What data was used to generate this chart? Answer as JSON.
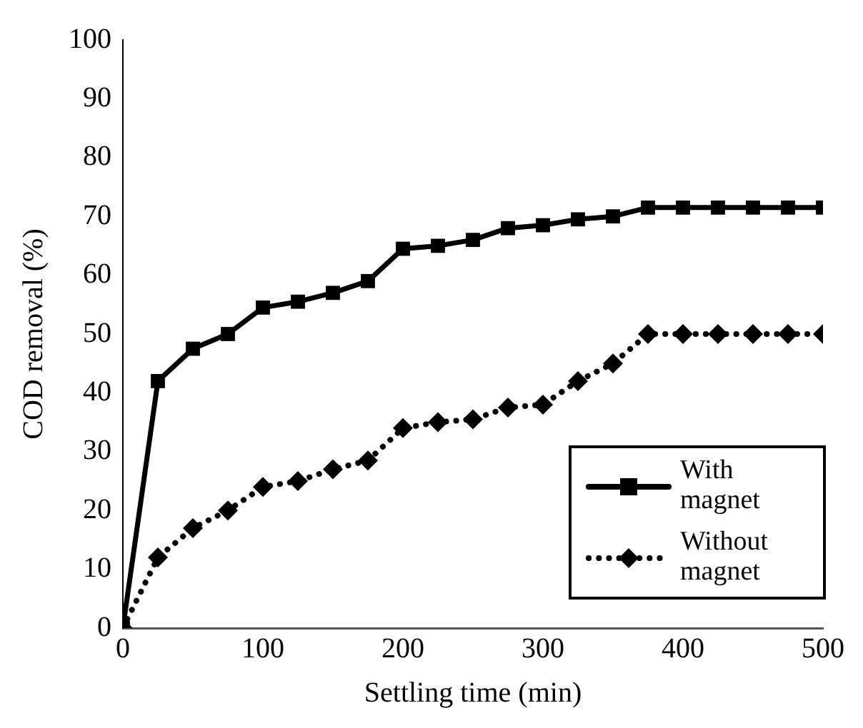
{
  "chart_data": {
    "type": "line",
    "xlabel": "Settling time (min)",
    "ylabel": "COD removal (%)",
    "x": [
      0,
      25,
      50,
      75,
      100,
      125,
      150,
      175,
      200,
      225,
      250,
      275,
      300,
      325,
      350,
      375,
      400,
      425,
      450,
      475,
      500
    ],
    "series": [
      {
        "name": "With magnet",
        "color": "#000000",
        "marker": "square",
        "line_style": "solid",
        "values": [
          0,
          42,
          47.5,
          50,
          54.5,
          55.5,
          57,
          59,
          64.5,
          65,
          66,
          68,
          68.5,
          69.5,
          70,
          71.5,
          71.5,
          71.5,
          71.5,
          71.5,
          71.5
        ]
      },
      {
        "name": "Without magnet",
        "color": "#000000",
        "marker": "diamond",
        "line_style": "dotted",
        "values": [
          0,
          12,
          17,
          20,
          24,
          25,
          27,
          28.5,
          34,
          35,
          35.5,
          37.5,
          38,
          42,
          45,
          50,
          50,
          50,
          50,
          50,
          50
        ]
      }
    ],
    "xlim": [
      0,
      500
    ],
    "xticks": [
      0,
      100,
      200,
      300,
      400,
      500
    ],
    "ylim": [
      0,
      100
    ],
    "yticks": [
      0,
      10,
      20,
      30,
      40,
      50,
      60,
      70,
      80,
      90,
      100
    ],
    "grid": false,
    "legend": "bottom right"
  }
}
